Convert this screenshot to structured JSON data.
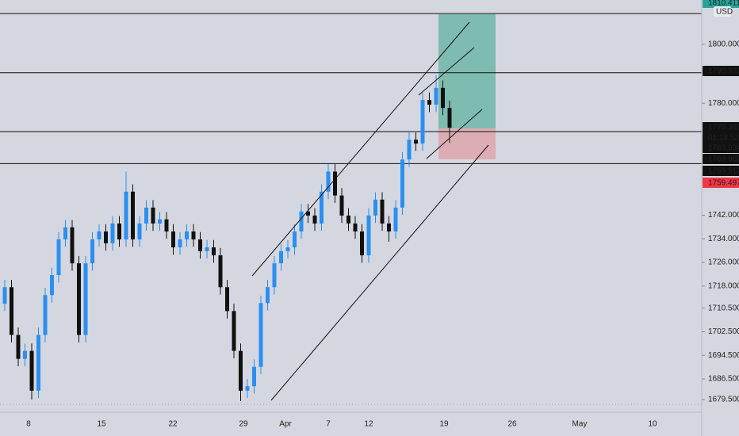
{
  "chart_data": {
    "type": "candlestick",
    "series": [
      {
        "up_color": "#2a8ff0",
        "down_color": "#111111",
        "open": [
          1712.0,
          1717.6,
          1701.4,
          1693.3,
          1696.0,
          1682.5,
          1701.4,
          1714.9,
          1721.7,
          1733.8,
          1737.9,
          1725.7,
          1701.4,
          1725.7,
          1733.8,
          1736.5,
          1732.5,
          1739.2,
          1733.8,
          1750.0,
          1733.8,
          1739.2,
          1744.6,
          1739.2,
          1740.6,
          1736.5,
          1731.1,
          1733.8,
          1736.5,
          1733.8,
          1729.8,
          1731.1,
          1728.4,
          1717.6,
          1709.5,
          1696.0,
          1682.5,
          1684.0,
          1690.6,
          1712.2,
          1717.6,
          1725.7,
          1729.8,
          1731.1,
          1736.5,
          1743.3,
          1741.9,
          1739.2,
          1750.0,
          1756.8,
          1748.7,
          1741.9,
          1739.2,
          1736.5,
          1728.4,
          1741.9,
          1747.3,
          1739.2,
          1736.5,
          1744.6,
          1760.9,
          1767.6,
          1766.3,
          1781.1,
          1779.5,
          1785.2,
          1778.4
        ],
        "high": [
          1720.1,
          1720.1,
          1703.9,
          1698.5,
          1698.5,
          1703.9,
          1717.4,
          1724.2,
          1736.3,
          1740.4,
          1740.4,
          1728.2,
          1728.2,
          1736.3,
          1739.0,
          1739.0,
          1741.7,
          1741.7,
          1756.8,
          1752.5,
          1741.7,
          1747.1,
          1747.1,
          1743.1,
          1743.1,
          1739.0,
          1736.3,
          1739.0,
          1739.0,
          1736.3,
          1733.6,
          1733.6,
          1730.9,
          1720.1,
          1712.0,
          1698.5,
          1686.5,
          1693.1,
          1714.7,
          1720.1,
          1728.2,
          1732.3,
          1733.6,
          1739.0,
          1745.8,
          1745.8,
          1744.4,
          1752.5,
          1759.3,
          1759.3,
          1751.2,
          1744.4,
          1741.7,
          1739.0,
          1744.4,
          1749.8,
          1749.8,
          1741.7,
          1747.1,
          1763.4,
          1770.1,
          1770.1,
          1783.6,
          1783.6,
          1789.5,
          1787.7,
          1780.9
        ],
        "low": [
          1709.5,
          1698.9,
          1690.8,
          1690.8,
          1679.5,
          1680.0,
          1698.9,
          1712.4,
          1719.2,
          1731.3,
          1723.2,
          1698.9,
          1698.9,
          1723.2,
          1731.3,
          1730.0,
          1730.0,
          1731.3,
          1731.3,
          1731.3,
          1731.3,
          1736.7,
          1736.7,
          1736.7,
          1734.0,
          1728.6,
          1728.6,
          1731.3,
          1731.3,
          1727.3,
          1727.3,
          1725.9,
          1715.1,
          1707.0,
          1693.5,
          1679.0,
          1680.0,
          1681.5,
          1688.1,
          1709.7,
          1715.1,
          1723.2,
          1727.3,
          1728.6,
          1734.0,
          1739.4,
          1736.7,
          1736.7,
          1747.5,
          1746.2,
          1739.4,
          1736.7,
          1734.0,
          1725.9,
          1725.9,
          1739.4,
          1736.7,
          1733.0,
          1734.0,
          1742.1,
          1758.4,
          1763.8,
          1763.8,
          1777.0,
          1777.0,
          1775.9,
          1766.5
        ],
        "close": [
          1717.6,
          1701.4,
          1693.3,
          1696.0,
          1682.5,
          1701.4,
          1714.9,
          1721.7,
          1733.8,
          1737.9,
          1725.7,
          1701.4,
          1725.7,
          1733.8,
          1736.5,
          1732.5,
          1739.2,
          1733.8,
          1750.0,
          1733.8,
          1739.2,
          1744.6,
          1739.2,
          1740.6,
          1736.5,
          1731.1,
          1733.8,
          1736.5,
          1733.8,
          1729.8,
          1731.1,
          1728.4,
          1717.6,
          1709.5,
          1696.0,
          1682.5,
          1684.0,
          1690.6,
          1712.2,
          1717.6,
          1725.7,
          1729.8,
          1731.1,
          1736.5,
          1743.3,
          1741.9,
          1739.2,
          1750.0,
          1756.8,
          1748.7,
          1741.9,
          1739.2,
          1736.5,
          1728.4,
          1741.9,
          1747.3,
          1739.2,
          1736.5,
          1744.6,
          1760.9,
          1767.6,
          1766.3,
          1781.1,
          1779.5,
          1785.2,
          1778.4,
          1771.7
        ]
      }
    ],
    "ylim": [
      1675.2,
      1815.0
    ],
    "yticks": [
      {
        "value": 1679.5,
        "label": "1679.500"
      },
      {
        "value": 1686.5,
        "label": "1686.500"
      },
      {
        "value": 1694.5,
        "label": "1694.500"
      },
      {
        "value": 1702.5,
        "label": "1702.500"
      },
      {
        "value": 1710.5,
        "label": "1710.500"
      },
      {
        "value": 1718,
        "label": "1718.000"
      },
      {
        "value": 1726,
        "label": "1726.000"
      },
      {
        "value": 1734,
        "label": "1734.000"
      },
      {
        "value": 1742,
        "label": "1742.000"
      },
      {
        "value": 1780,
        "label": "1780.000"
      },
      {
        "value": 1800,
        "label": "1800.000"
      }
    ],
    "levels": [
      1810.411,
      1790.327,
      1770.38,
      1759.512
    ],
    "price_badges": [
      "1810.411",
      "USD",
      "1790.327",
      "1770.380",
      "01:18:52",
      "1769.934",
      "1769.902",
      "1759.512",
      "1759.497"
    ],
    "x_labels": [
      "8",
      "15",
      "22",
      "29",
      "Apr",
      "7",
      "12",
      "19",
      "26",
      "May",
      "10"
    ]
  }
}
